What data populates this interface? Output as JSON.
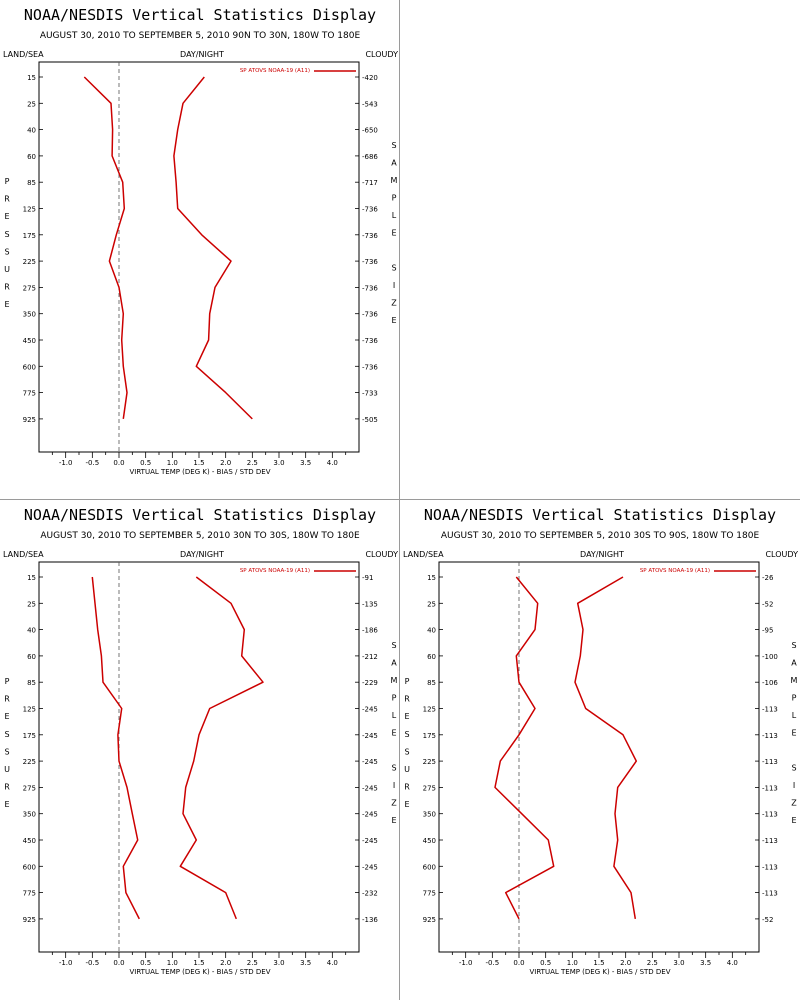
{
  "chart_data": [
    {
      "type": "line",
      "title": "NOAA/NESDIS Vertical Statistics Display",
      "subtitle": "AUGUST 30, 2010 TO SEPTEMBER 5, 2010  90N TO 30N, 180W TO 180E",
      "corner_labels": {
        "left": "LAND/SEA",
        "center": "DAY/NIGHT",
        "right": "CLOUDY"
      },
      "ylabel_left": "PRESSURE",
      "ylabel_right": "SAMPLE SIZE",
      "xlabel": "VIRTUAL TEMP (DEG K) - BIAS / STD DEV",
      "legend": "SP ATOVS NOAA-19 (A11)",
      "line_color": "#cc0000",
      "xlim": [
        -1.5,
        4.5
      ],
      "xticks": [
        "-1.0",
        "-0.5",
        "0.0",
        "0.5",
        "1.0",
        "1.5",
        "2.0",
        "2.5",
        "3.0",
        "3.5",
        "4.0"
      ],
      "pressure": [
        15,
        25,
        40,
        60,
        85,
        125,
        175,
        225,
        275,
        350,
        450,
        600,
        775,
        925
      ],
      "sample_size": [
        420,
        543,
        650,
        686,
        717,
        736,
        736,
        736,
        736,
        736,
        736,
        736,
        733,
        505
      ],
      "series": [
        {
          "values": [
            -0.65,
            -0.15,
            -0.12,
            -0.13,
            0.07,
            0.1,
            -0.05,
            -0.18,
            0.0,
            0.08,
            0.05,
            0.08,
            0.15,
            0.08
          ]
        },
        {
          "values": [
            1.6,
            1.2,
            1.1,
            1.03,
            1.07,
            1.1,
            1.55,
            2.1,
            1.8,
            1.7,
            1.68,
            1.45,
            2.0,
            2.5
          ]
        }
      ]
    },
    {
      "type": "line",
      "title": "NOAA/NESDIS Vertical Statistics Display",
      "subtitle": "AUGUST 30, 2010 TO SEPTEMBER 5, 2010  30N TO 30S, 180W TO 180E",
      "corner_labels": {
        "left": "LAND/SEA",
        "center": "DAY/NIGHT",
        "right": "CLOUDY"
      },
      "ylabel_left": "PRESSURE",
      "ylabel_right": "SAMPLE SIZE",
      "xlabel": "VIRTUAL TEMP (DEG K) - BIAS / STD DEV",
      "legend": "SP ATOVS NOAA-19 (A11)",
      "line_color": "#cc0000",
      "xlim": [
        -1.5,
        4.5
      ],
      "xticks": [
        "-1.0",
        "-0.5",
        "0.0",
        "0.5",
        "1.0",
        "1.5",
        "2.0",
        "2.5",
        "3.0",
        "3.5",
        "4.0"
      ],
      "pressure": [
        15,
        25,
        40,
        60,
        85,
        125,
        175,
        225,
        275,
        350,
        450,
        600,
        775,
        925
      ],
      "sample_size": [
        91,
        135,
        186,
        212,
        229,
        245,
        245,
        245,
        245,
        245,
        245,
        245,
        232,
        136
      ],
      "series": [
        {
          "values": [
            -0.5,
            -0.45,
            -0.4,
            -0.33,
            -0.3,
            0.05,
            -0.02,
            0.0,
            0.15,
            0.25,
            0.35,
            0.08,
            0.13,
            0.38
          ]
        },
        {
          "values": [
            1.45,
            2.1,
            2.35,
            2.3,
            2.7,
            1.7,
            1.5,
            1.4,
            1.25,
            1.2,
            1.45,
            1.15,
            2.0,
            2.2
          ]
        }
      ]
    },
    {
      "type": "line",
      "title": "NOAA/NESDIS Vertical Statistics Display",
      "subtitle": "AUGUST 30, 2010 TO SEPTEMBER 5, 2010  30S TO 90S, 180W TO 180E",
      "corner_labels": {
        "left": "LAND/SEA",
        "center": "DAY/NIGHT",
        "right": "CLOUDY"
      },
      "ylabel_left": "PRESSURE",
      "ylabel_right": "SAMPLE SIZE",
      "xlabel": "VIRTUAL TEMP (DEG K) - BIAS / STD DEV",
      "legend": "SP ATOVS NOAA-19 (A11)",
      "line_color": "#cc0000",
      "xlim": [
        -1.5,
        4.5
      ],
      "xticks": [
        "-1.0",
        "-0.5",
        "0.0",
        "0.5",
        "1.0",
        "1.5",
        "2.0",
        "2.5",
        "3.0",
        "3.5",
        "4.0"
      ],
      "pressure": [
        15,
        25,
        40,
        60,
        85,
        125,
        175,
        225,
        275,
        350,
        450,
        600,
        775,
        925
      ],
      "sample_size": [
        26,
        52,
        95,
        100,
        106,
        113,
        113,
        113,
        113,
        113,
        113,
        113,
        113,
        52
      ],
      "series": [
        {
          "values": [
            -0.05,
            0.35,
            0.3,
            -0.05,
            0.0,
            0.3,
            0.0,
            -0.35,
            -0.45,
            0.05,
            0.55,
            0.65,
            -0.25,
            0.0
          ]
        },
        {
          "values": [
            1.95,
            1.1,
            1.2,
            1.15,
            1.05,
            1.25,
            1.95,
            2.2,
            1.85,
            1.8,
            1.85,
            1.78,
            2.1,
            2.18
          ]
        }
      ]
    }
  ]
}
